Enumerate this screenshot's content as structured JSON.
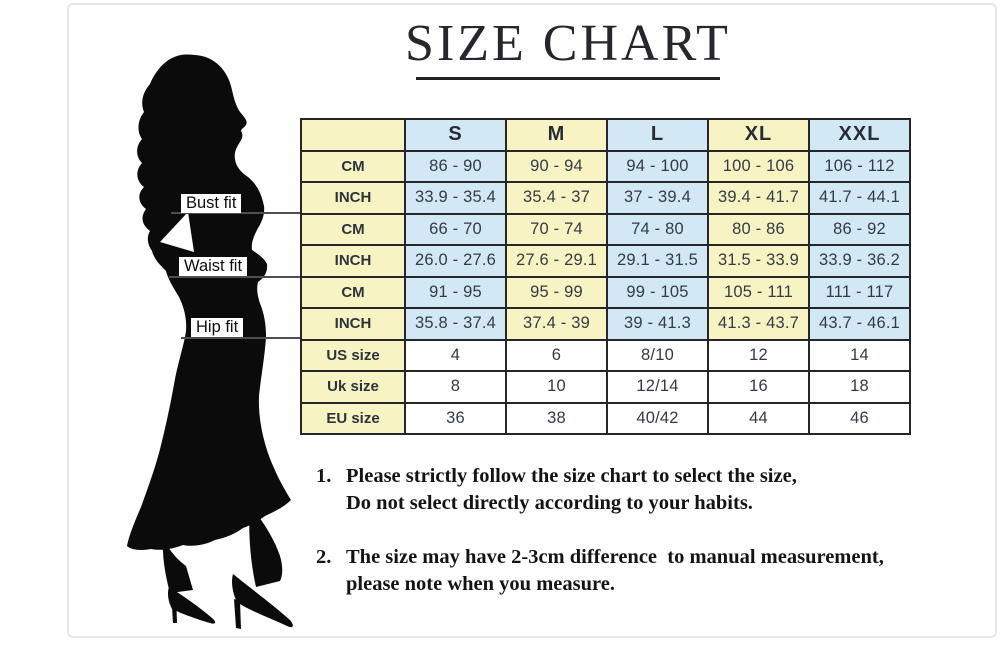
{
  "title": {
    "text": "SIZE CHART"
  },
  "fits": [
    {
      "label": "Bust fit"
    },
    {
      "label": "Waist fit"
    },
    {
      "label": "Hip fit"
    }
  ],
  "chart_data": {
    "type": "table",
    "title": "SIZE CHART",
    "columns": [
      "S",
      "M",
      "L",
      "XL",
      "XXL"
    ],
    "rows": [
      {
        "group": "Bust fit",
        "label": "CM",
        "style": "striped",
        "values": [
          "86 - 90",
          "90 - 94",
          "94 - 100",
          "100 - 106",
          "106 - 112"
        ]
      },
      {
        "group": "Bust fit",
        "label": "INCH",
        "style": "striped",
        "values": [
          "33.9 - 35.4",
          "35.4 - 37",
          "37 - 39.4",
          "39.4 - 41.7",
          "41.7 - 44.1"
        ]
      },
      {
        "group": "Waist fit",
        "label": "CM",
        "style": "striped",
        "values": [
          "66 - 70",
          "70 - 74",
          "74 - 80",
          "80 - 86",
          "86 - 92"
        ]
      },
      {
        "group": "Waist fit",
        "label": "INCH",
        "style": "striped",
        "values": [
          "26.0 - 27.6",
          "27.6 - 29.1",
          "29.1 - 31.5",
          "31.5 - 33.9",
          "33.9 - 36.2"
        ]
      },
      {
        "group": "Hip fit",
        "label": "CM",
        "style": "striped",
        "values": [
          "91 - 95",
          "95 - 99",
          "99 - 105",
          "105 - 111",
          "111 - 117"
        ]
      },
      {
        "group": "Hip fit",
        "label": "INCH",
        "style": "striped",
        "values": [
          "35.8 - 37.4",
          "37.4 - 39",
          "39 - 41.3",
          "41.3 - 43.7",
          "43.7 - 46.1"
        ]
      },
      {
        "group": "Conversion",
        "label": "US size",
        "style": "plain",
        "values": [
          "4",
          "6",
          "8/10",
          "12",
          "14"
        ]
      },
      {
        "group": "Conversion",
        "label": "Uk size",
        "style": "plain",
        "values": [
          "8",
          "10",
          "12/14",
          "16",
          "18"
        ]
      },
      {
        "group": "Conversion",
        "label": "EU size",
        "style": "plain",
        "values": [
          "36",
          "38",
          "40/42",
          "44",
          "46"
        ]
      }
    ]
  },
  "notes": [
    {
      "number": "1.",
      "line1": "Please strictly follow the size chart to select the size,",
      "line2": "Do not select directly according to your habits."
    },
    {
      "number": "2.",
      "line1": "The size may have 2-3cm difference  to manual measurement,",
      "line2": "please note when you measure."
    }
  ],
  "colors": {
    "cell_yellow": "#f7f3c3",
    "cell_blue": "#d2e8f4",
    "cell_white": "#ffffff",
    "table_border": "#26262a",
    "silhouette": "#0b0b0b"
  }
}
